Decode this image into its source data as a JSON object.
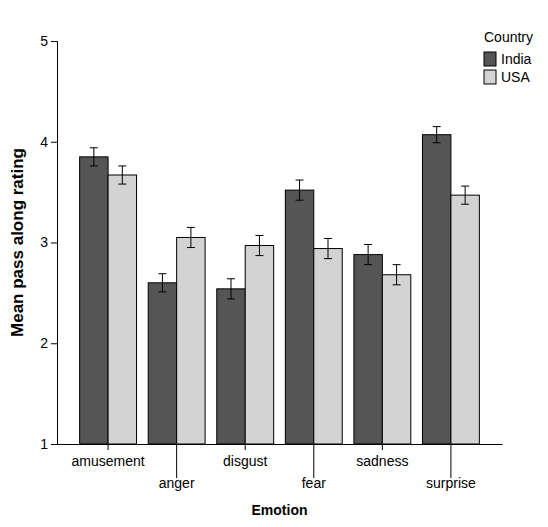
{
  "chart_data": {
    "type": "bar",
    "x_label": "Emotion",
    "y_label": "Mean pass along rating",
    "legend_title": "Country",
    "categories": [
      "amusement",
      "anger",
      "disgust",
      "fear",
      "sadness",
      "surprise"
    ],
    "series": [
      {
        "name": "India",
        "color": "#555555",
        "values": [
          3.85,
          2.6,
          2.54,
          3.52,
          2.88,
          4.07
        ],
        "errors": [
          0.09,
          0.09,
          0.1,
          0.1,
          0.1,
          0.08
        ]
      },
      {
        "name": "USA",
        "color": "#d3d3d3",
        "values": [
          3.67,
          3.05,
          2.97,
          2.94,
          2.68,
          3.47
        ],
        "errors": [
          0.09,
          0.1,
          0.1,
          0.1,
          0.1,
          0.09
        ]
      }
    ],
    "ylim": [
      1,
      5
    ],
    "yticks": [
      1,
      2,
      3,
      4,
      5
    ],
    "grid": false,
    "legend": "top-right"
  }
}
